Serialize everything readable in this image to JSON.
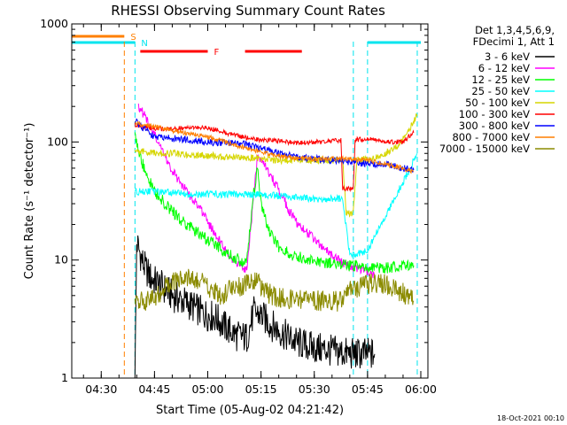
{
  "chart_data": {
    "type": "line",
    "title": "RHESSI Observing Summary Count Rates",
    "xlabel": "Start Time (05-Aug-02 04:21:42)",
    "ylabel": "Count Rate (s⁻¹ detector⁻¹)",
    "yscale": "log",
    "ylim": [
      1,
      1000
    ],
    "xlim": [
      "04:21:42",
      "06:02:00"
    ],
    "x_ticks": [
      "04:30",
      "04:45",
      "05:00",
      "05:15",
      "05:30",
      "05:45",
      "06:00"
    ],
    "y_ticks": [
      "1",
      "10",
      "100",
      "1000"
    ],
    "grid": false,
    "legend_position": "right",
    "legend_header": [
      "Det 1,3,4,5,6,9,",
      "FDecimi 1, Att 1"
    ],
    "timestamp": "18-Oct-2021 00:10",
    "flags": [
      {
        "label": "S",
        "color": "#ff7f00",
        "intervals": [
          [
            "04:21:42",
            "04:36:30"
          ]
        ]
      },
      {
        "label": "N",
        "color": "#00e5ee",
        "intervals": [
          [
            "04:21:42",
            "04:39:30"
          ],
          [
            "05:45:00",
            "06:00:00"
          ]
        ]
      },
      {
        "label": "F",
        "color": "#ff0000",
        "intervals": [
          [
            "04:41:00",
            "05:00:00"
          ],
          [
            "05:10:30",
            "05:26:30"
          ]
        ]
      }
    ],
    "vertical_markers": [
      {
        "time": "04:36:30",
        "color": "#ff7f00"
      },
      {
        "time": "04:39:30",
        "color": "#00e5ee"
      },
      {
        "time": "05:41:00",
        "color": "#00e5ee"
      },
      {
        "time": "05:45:00",
        "color": "#00e5ee"
      },
      {
        "time": "05:59:00",
        "color": "#00e5ee"
      }
    ],
    "series": [
      {
        "name": "3 - 6 keV",
        "color": "#000000",
        "noise": 0.14,
        "points": [
          [
            "04:39:30",
            1.0
          ],
          [
            "04:40:00",
            14
          ],
          [
            "04:42:00",
            9
          ],
          [
            "04:44:00",
            7
          ],
          [
            "04:47:00",
            6
          ],
          [
            "04:50:00",
            5
          ],
          [
            "04:53:00",
            4.5
          ],
          [
            "04:56:00",
            4
          ],
          [
            "04:59:00",
            3.5
          ],
          [
            "05:02:00",
            3.3
          ],
          [
            "05:05:00",
            2.7
          ],
          [
            "05:08:00",
            2.3
          ],
          [
            "05:11:00",
            2.2
          ],
          [
            "05:13:00",
            3.6
          ],
          [
            "05:15:00",
            3.4
          ],
          [
            "05:18:00",
            2.8
          ],
          [
            "05:21:00",
            2.4
          ],
          [
            "05:25:00",
            2.0
          ],
          [
            "05:30:00",
            1.8
          ],
          [
            "05:35:00",
            1.7
          ],
          [
            "05:40:00",
            1.6
          ],
          [
            "05:45:00",
            1.6
          ],
          [
            "05:47:00",
            1.6
          ]
        ]
      },
      {
        "name": "6 - 12 keV",
        "color": "#ff00ff",
        "noise": 0.04,
        "points": [
          [
            "04:40:30",
            200
          ],
          [
            "04:42:00",
            170
          ],
          [
            "04:44:00",
            130
          ],
          [
            "04:46:00",
            100
          ],
          [
            "04:48:00",
            75
          ],
          [
            "04:50:00",
            57
          ],
          [
            "04:52:00",
            46
          ],
          [
            "04:55:00",
            35
          ],
          [
            "04:58:00",
            27
          ],
          [
            "05:00:00",
            21
          ],
          [
            "05:03:00",
            15
          ],
          [
            "05:06:00",
            11
          ],
          [
            "05:09:00",
            9
          ],
          [
            "05:11:00",
            8
          ],
          [
            "05:12:30",
            25
          ],
          [
            "05:14:00",
            75
          ],
          [
            "05:15:30",
            70
          ],
          [
            "05:17:00",
            56
          ],
          [
            "05:20:00",
            40
          ],
          [
            "05:23:00",
            26
          ],
          [
            "05:26:00",
            19
          ],
          [
            "05:29:00",
            16
          ],
          [
            "05:32:00",
            13
          ],
          [
            "05:35:00",
            11
          ],
          [
            "05:38:00",
            9.5
          ],
          [
            "05:41:00",
            8.5
          ],
          [
            "05:45:00",
            8
          ],
          [
            "05:47:00",
            7.5
          ]
        ]
      },
      {
        "name": "12 - 25 keV",
        "color": "#00ff00",
        "noise": 0.05,
        "points": [
          [
            "04:39:30",
            120
          ],
          [
            "04:41:00",
            75
          ],
          [
            "04:43:00",
            50
          ],
          [
            "04:45:00",
            38
          ],
          [
            "04:48:00",
            30
          ],
          [
            "04:51:00",
            24
          ],
          [
            "04:54:00",
            20
          ],
          [
            "04:57:00",
            17
          ],
          [
            "05:00:00",
            15
          ],
          [
            "05:03:00",
            13
          ],
          [
            "05:06:00",
            11
          ],
          [
            "05:09:00",
            10
          ],
          [
            "05:11:00",
            9.5
          ],
          [
            "05:12:30",
            30
          ],
          [
            "05:14:00",
            60
          ],
          [
            "05:15:00",
            30
          ],
          [
            "05:17:00",
            18
          ],
          [
            "05:20:00",
            13
          ],
          [
            "05:24:00",
            11
          ],
          [
            "05:28:00",
            10
          ],
          [
            "05:32:00",
            9.5
          ],
          [
            "05:36:00",
            9.2
          ],
          [
            "05:40:00",
            9
          ],
          [
            "05:45:00",
            8.8
          ],
          [
            "05:50:00",
            8.6
          ],
          [
            "05:55:00",
            9
          ],
          [
            "05:58:00",
            9
          ]
        ]
      },
      {
        "name": "25 - 50 keV",
        "color": "#00ffff",
        "noise": 0.03,
        "points": [
          [
            "04:39:30",
            38
          ],
          [
            "04:45:00",
            38
          ],
          [
            "04:55:00",
            36
          ],
          [
            "05:05:00",
            36
          ],
          [
            "05:15:00",
            36
          ],
          [
            "05:20:00",
            35
          ],
          [
            "05:30:00",
            33
          ],
          [
            "05:38:00",
            33
          ],
          [
            "05:40:00",
            11
          ],
          [
            "05:45:00",
            12
          ],
          [
            "05:48:00",
            18
          ],
          [
            "05:51:00",
            27
          ],
          [
            "05:54:00",
            40
          ],
          [
            "05:57:00",
            60
          ],
          [
            "05:59:00",
            80
          ]
        ]
      },
      {
        "name": "50 - 100 keV",
        "color": "#d6d600",
        "noise": 0.03,
        "points": [
          [
            "04:39:30",
            85
          ],
          [
            "04:45:00",
            80
          ],
          [
            "04:50:00",
            80
          ],
          [
            "04:55:00",
            77
          ],
          [
            "05:00:00",
            77
          ],
          [
            "05:05:00",
            74
          ],
          [
            "05:10:00",
            74
          ],
          [
            "05:15:00",
            72
          ],
          [
            "05:20:00",
            70
          ],
          [
            "05:25:00",
            70
          ],
          [
            "05:30:00",
            70
          ],
          [
            "05:38:00",
            70
          ],
          [
            "05:39:00",
            25
          ],
          [
            "05:41:00",
            25
          ],
          [
            "05:42:00",
            70
          ],
          [
            "05:46:00",
            72
          ],
          [
            "05:50:00",
            80
          ],
          [
            "05:54:00",
            95
          ],
          [
            "05:57:00",
            130
          ],
          [
            "05:59:00",
            170
          ]
        ]
      },
      {
        "name": "100 - 300 keV",
        "color": "#ff0000",
        "noise": 0.02,
        "points": [
          [
            "04:39:30",
            140
          ],
          [
            "04:45:00",
            130
          ],
          [
            "04:50:00",
            128
          ],
          [
            "04:55:00",
            135
          ],
          [
            "05:00:00",
            132
          ],
          [
            "05:05:00",
            120
          ],
          [
            "05:10:00",
            110
          ],
          [
            "05:15:00",
            104
          ],
          [
            "05:20:00",
            102
          ],
          [
            "05:25:00",
            98
          ],
          [
            "05:30:00",
            100
          ],
          [
            "05:37:30",
            103
          ],
          [
            "05:38:00",
            40
          ],
          [
            "05:41:00",
            40
          ],
          [
            "05:41:30",
            105
          ],
          [
            "05:46:00",
            105
          ],
          [
            "05:50:00",
            100
          ],
          [
            "05:55:00",
            100
          ],
          [
            "05:58:00",
            120
          ]
        ]
      },
      {
        "name": "300 - 800 keV",
        "color": "#0000ff",
        "noise": 0.03,
        "points": [
          [
            "04:39:30",
            150
          ],
          [
            "04:45:00",
            110
          ],
          [
            "04:50:00",
            108
          ],
          [
            "04:55:00",
            103
          ],
          [
            "05:00:00",
            100
          ],
          [
            "05:05:00",
            98
          ],
          [
            "05:10:00",
            96
          ],
          [
            "05:15:00",
            88
          ],
          [
            "05:20:00",
            80
          ],
          [
            "05:25:00",
            75
          ],
          [
            "05:30:00",
            72
          ],
          [
            "05:35:00",
            70
          ],
          [
            "05:40:00",
            68
          ],
          [
            "05:45:00",
            65
          ],
          [
            "05:50:00",
            65
          ],
          [
            "05:55:00",
            60
          ],
          [
            "05:58:00",
            58
          ]
        ]
      },
      {
        "name": "800 - 7000 keV",
        "color": "#ff7f00",
        "noise": 0.02,
        "points": [
          [
            "04:39:30",
            145
          ],
          [
            "04:45:00",
            135
          ],
          [
            "04:50:00",
            125
          ],
          [
            "04:55:00",
            118
          ],
          [
            "05:00:00",
            110
          ],
          [
            "05:05:00",
            100
          ],
          [
            "05:10:00",
            90
          ],
          [
            "05:15:00",
            82
          ],
          [
            "05:20:00",
            76
          ],
          [
            "05:25:00",
            73
          ],
          [
            "05:30:00",
            72
          ],
          [
            "05:35:00",
            72
          ],
          [
            "05:40:00",
            72
          ],
          [
            "05:45:00",
            70
          ],
          [
            "05:50:00",
            65
          ],
          [
            "05:55:00",
            60
          ],
          [
            "05:58:00",
            56
          ]
        ]
      },
      {
        "name": "7000 - 15000 keV",
        "color": "#8b8b00",
        "noise": 0.09,
        "points": [
          [
            "04:39:30",
            4.5
          ],
          [
            "04:44:00",
            4.5
          ],
          [
            "04:46:00",
            5
          ],
          [
            "04:49:00",
            6.5
          ],
          [
            "04:52:00",
            7
          ],
          [
            "04:55:00",
            7
          ],
          [
            "04:58:00",
            6.5
          ],
          [
            "05:01:00",
            5.5
          ],
          [
            "05:04:00",
            5
          ],
          [
            "05:07:00",
            6
          ],
          [
            "05:10:00",
            6
          ],
          [
            "05:13:00",
            7
          ],
          [
            "05:15:00",
            6
          ],
          [
            "05:18:00",
            5
          ],
          [
            "05:21:00",
            4.8
          ],
          [
            "05:25:00",
            4.6
          ],
          [
            "05:30:00",
            4.5
          ],
          [
            "05:35:00",
            4.5
          ],
          [
            "05:38:00",
            4.5
          ],
          [
            "05:40:00",
            5.5
          ],
          [
            "05:44:00",
            6
          ],
          [
            "05:48:00",
            6.5
          ],
          [
            "05:52:00",
            6
          ],
          [
            "05:55:00",
            5.2
          ],
          [
            "05:58:00",
            4.5
          ]
        ]
      }
    ]
  }
}
